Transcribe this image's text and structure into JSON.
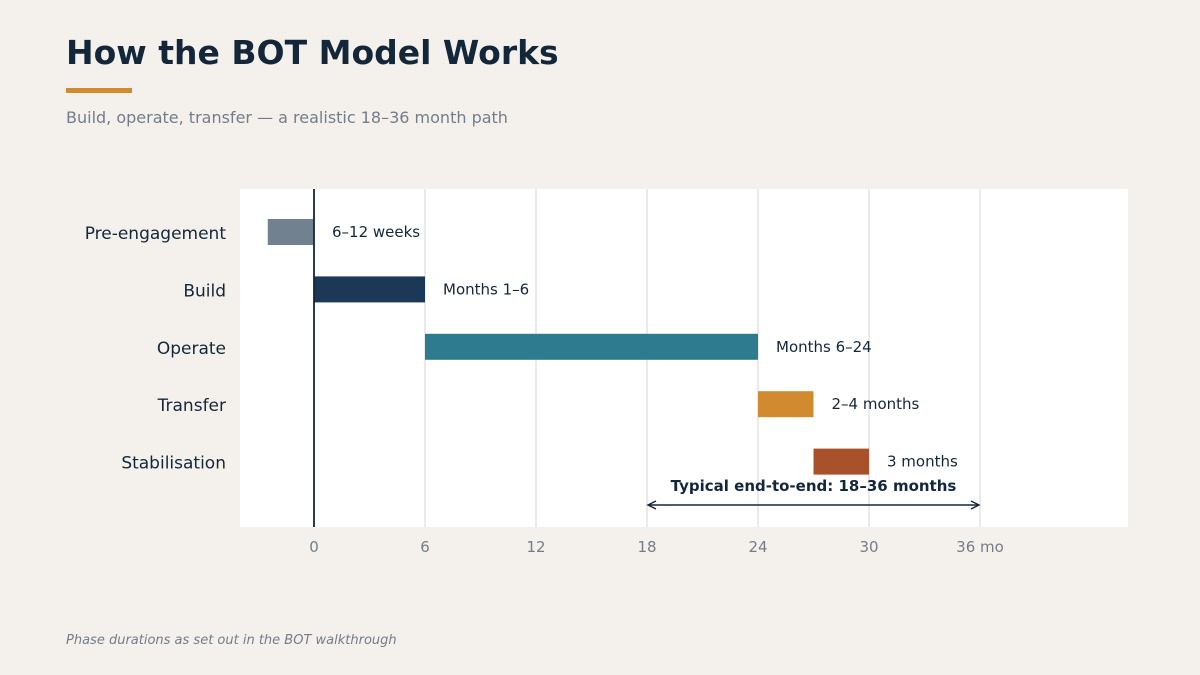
{
  "header": {
    "title": "How the BOT Model Works",
    "subtitle": "Build, operate, transfer — a realistic 18–36 month path"
  },
  "footnote": "Phase durations as set out in the BOT walkthrough",
  "colors": {
    "background": "#f4f1ec",
    "title": "#14263a",
    "accent": "#d18a30",
    "muted": "#737d8a",
    "grid": "#dcdcdc",
    "axis": "#14263a"
  },
  "chart_data": {
    "type": "bar",
    "orientation": "horizontal",
    "xlim": [
      -4,
      44
    ],
    "xticks": [
      0,
      6,
      12,
      18,
      24,
      30,
      36
    ],
    "xtick_labels": [
      "0",
      "6",
      "12",
      "18",
      "24",
      "30",
      "36 mo"
    ],
    "grid": true,
    "categories": [
      "Pre-engagement",
      "Build",
      "Operate",
      "Transfer",
      "Stabilisation"
    ],
    "bars": [
      {
        "category": "Pre-engagement",
        "start": -2.5,
        "end": 0,
        "label": "6–12 weeks",
        "color": "#718190"
      },
      {
        "category": "Build",
        "start": 0,
        "end": 6,
        "label": "Months 1–6",
        "color": "#1b3956"
      },
      {
        "category": "Operate",
        "start": 6,
        "end": 24,
        "label": "Months 6–24",
        "color": "#2e7b8f"
      },
      {
        "category": "Transfer",
        "start": 24,
        "end": 27,
        "label": "2–4 months",
        "color": "#d18a30"
      },
      {
        "category": "Stabilisation",
        "start": 27,
        "end": 30,
        "label": "3 months",
        "color": "#a8512b"
      }
    ],
    "annotation": {
      "text": "Typical end-to-end: 18–36 months",
      "from": 18,
      "to": 36
    }
  }
}
